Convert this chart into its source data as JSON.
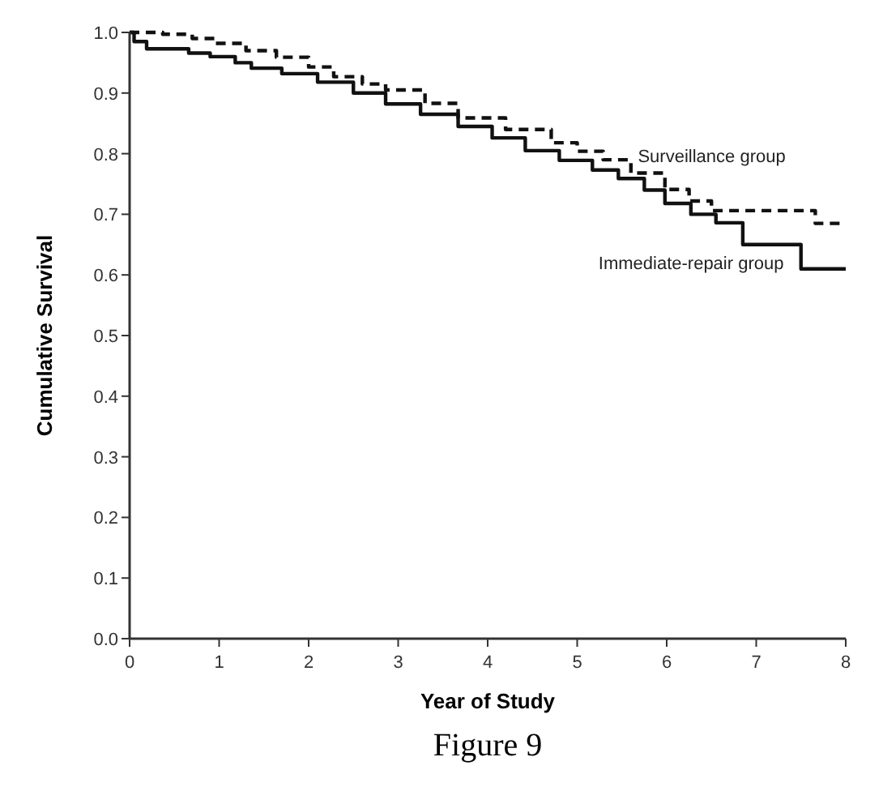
{
  "chart_data": {
    "type": "step",
    "xlabel": "Year of Study",
    "ylabel": "Cumulative Survival",
    "xlim": [
      0,
      8
    ],
    "ylim": [
      0,
      1
    ],
    "xticks": [
      0,
      1,
      2,
      3,
      4,
      5,
      6,
      7,
      8
    ],
    "yticks": [
      {
        "value": 0,
        "label": "0.0"
      },
      0.1,
      0.2,
      0.3,
      0.4,
      0.5,
      0.6,
      0.7,
      0.8,
      0.9,
      {
        "value": 1,
        "label": "1.0"
      }
    ],
    "grid": false,
    "series": [
      {
        "name": "Surveillance group",
        "color": "#111111",
        "line_style": "dashed",
        "x": [
          0,
          0.37,
          0.7,
          0.95,
          1.3,
          1.64,
          2.0,
          2.28,
          2.6,
          2.86,
          3.3,
          3.67,
          4.2,
          4.71,
          5.0,
          5.29,
          5.6,
          5.98,
          6.25,
          6.5,
          7.66,
          8
        ],
        "values": [
          1,
          0.997,
          0.99,
          0.982,
          0.97,
          0.959,
          0.943,
          0.927,
          0.915,
          0.905,
          0.883,
          0.859,
          0.84,
          0.818,
          0.804,
          0.79,
          0.768,
          0.741,
          0.722,
          0.706,
          0.685,
          0.685
        ]
      },
      {
        "name": "Immediate-repair group",
        "color": "#111111",
        "line_style": "solid",
        "x": [
          0,
          0.05,
          0.19,
          0.66,
          0.9,
          1.18,
          1.36,
          1.7,
          2.1,
          2.5,
          2.86,
          3.25,
          3.67,
          4.05,
          4.42,
          4.8,
          5.17,
          5.46,
          5.75,
          5.98,
          6.27,
          6.55,
          6.85,
          7.5,
          8
        ],
        "values": [
          1,
          0.985,
          0.973,
          0.966,
          0.96,
          0.95,
          0.941,
          0.932,
          0.918,
          0.9,
          0.882,
          0.865,
          0.845,
          0.826,
          0.805,
          0.789,
          0.773,
          0.759,
          0.74,
          0.718,
          0.7,
          0.686,
          0.65,
          0.61,
          0.61
        ]
      }
    ],
    "annotations": [
      "Figure 9"
    ]
  }
}
